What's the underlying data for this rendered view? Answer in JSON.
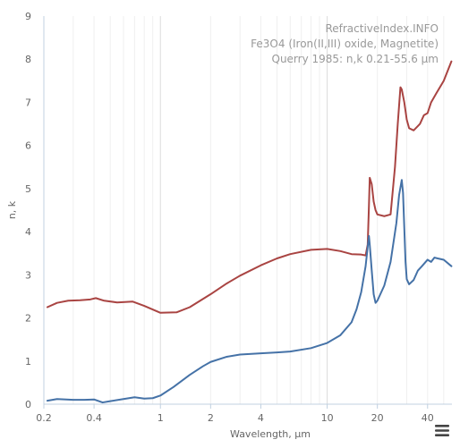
{
  "chart_data": {
    "type": "line",
    "title": "",
    "annotations": [
      "RefractiveIndex.INFO",
      "Fe3O4 (Iron(II,III) oxide, Magnetite)",
      "Querry 1985: n,k 0.21-55.6 µm"
    ],
    "xlabel": "Wavelength, µm",
    "ylabel": "n, k",
    "x_scale": "log",
    "xlim": [
      0.2,
      56
    ],
    "ylim": [
      0,
      9
    ],
    "x_ticks": [
      0.2,
      0.4,
      1,
      2,
      4,
      10,
      20,
      40
    ],
    "x_tick_labels": [
      "0.2",
      "0.4",
      "1",
      "2",
      "4",
      "10",
      "20",
      "40"
    ],
    "y_ticks": [
      0,
      1,
      2,
      3,
      4,
      5,
      6,
      7,
      8,
      9
    ],
    "y_tick_labels": [
      "0",
      "1",
      "2",
      "3",
      "4",
      "5",
      "6",
      "7",
      "8",
      "9"
    ],
    "grid": "x-major-and-minor",
    "legend": "none",
    "series": [
      {
        "color": "#a94442",
        "x": [
          0.21,
          0.24,
          0.28,
          0.33,
          0.38,
          0.41,
          0.46,
          0.55,
          0.68,
          0.8,
          1.0,
          1.25,
          1.5,
          2.0,
          2.5,
          3.0,
          4.0,
          5.0,
          6.0,
          8.0,
          10.0,
          12.0,
          14.0,
          16.0,
          17.0,
          17.5,
          17.8,
          18.0,
          18.5,
          19.0,
          19.5,
          20.0,
          22.0,
          24.0,
          25.5,
          26.5,
          27.5,
          28.0,
          29.0,
          30.0,
          31.0,
          33.0,
          35.0,
          36.0,
          38.0,
          40.0,
          42.0,
          45.0,
          50.0,
          55.6
        ],
        "values": [
          2.25,
          2.35,
          2.4,
          2.41,
          2.43,
          2.46,
          2.4,
          2.36,
          2.38,
          2.28,
          2.12,
          2.13,
          2.25,
          2.55,
          2.8,
          2.98,
          3.22,
          3.38,
          3.48,
          3.58,
          3.6,
          3.55,
          3.48,
          3.47,
          3.45,
          3.7,
          4.6,
          5.25,
          5.1,
          4.7,
          4.5,
          4.4,
          4.36,
          4.4,
          5.5,
          6.5,
          7.35,
          7.3,
          7.0,
          6.6,
          6.4,
          6.35,
          6.45,
          6.5,
          6.7,
          6.75,
          7.0,
          7.2,
          7.5,
          7.95
        ]
      },
      {
        "color": "#4572a7",
        "x": [
          0.21,
          0.24,
          0.3,
          0.35,
          0.4,
          0.45,
          0.5,
          0.6,
          0.7,
          0.8,
          0.9,
          1.0,
          1.2,
          1.5,
          1.8,
          2.0,
          2.5,
          3.0,
          4.0,
          5.0,
          6.0,
          8.0,
          10.0,
          12.0,
          14.0,
          15.0,
          16.0,
          17.0,
          17.5,
          17.8,
          18.0,
          18.5,
          19.0,
          19.5,
          20.0,
          22.0,
          24.0,
          26.0,
          27.0,
          28.0,
          28.5,
          29.5,
          30.0,
          31.0,
          33.0,
          35.0,
          37.0,
          40.0,
          42.0,
          44.0,
          46.0,
          50.0,
          55.6
        ],
        "values": [
          0.08,
          0.12,
          0.1,
          0.1,
          0.11,
          0.04,
          0.07,
          0.12,
          0.16,
          0.13,
          0.14,
          0.2,
          0.4,
          0.68,
          0.88,
          0.98,
          1.1,
          1.15,
          1.18,
          1.2,
          1.22,
          1.3,
          1.42,
          1.6,
          1.9,
          2.2,
          2.6,
          3.2,
          3.65,
          3.9,
          3.7,
          3.1,
          2.55,
          2.35,
          2.4,
          2.75,
          3.3,
          4.2,
          4.85,
          5.2,
          4.9,
          3.3,
          2.9,
          2.78,
          2.88,
          3.1,
          3.2,
          3.35,
          3.3,
          3.4,
          3.38,
          3.35,
          3.2
        ]
      }
    ]
  }
}
